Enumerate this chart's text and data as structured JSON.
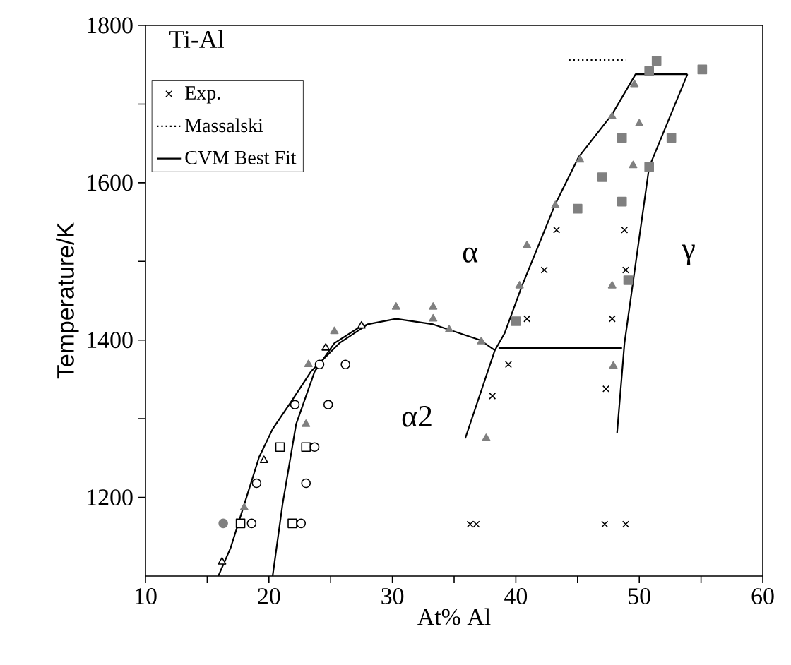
{
  "chart_data": {
    "type": "scatter",
    "title": "Ti-Al",
    "xlabel": "At% Al",
    "ylabel": "Temperature/K",
    "xlim": [
      10,
      60
    ],
    "ylim": [
      1100,
      1800
    ],
    "xticks": [
      10,
      {
        "value": 15,
        "label": null
      },
      20,
      {
        "value": 25,
        "label": null
      },
      30,
      {
        "value": 35,
        "label": null
      },
      40,
      {
        "value": 45,
        "label": null
      },
      50,
      {
        "value": 55,
        "label": null
      },
      60
    ],
    "yticks": [
      {
        "value": 1300,
        "label": null
      },
      1200,
      1400,
      {
        "value": 1500,
        "label": null
      },
      1600,
      {
        "value": 1700,
        "label": null
      },
      1800
    ],
    "legend": "top left",
    "grid": false,
    "annotations": [
      "α",
      "α2",
      "γ"
    ],
    "series": [
      {
        "name": "Exp.",
        "marker": "cross",
        "color": "#000000",
        "x": [
          43.3,
          48.8,
          42.3,
          48.9,
          40.9,
          47.8,
          38.1,
          47.3,
          36.3,
          47.2,
          39.4,
          48.9,
          36.8
        ],
        "values": [
          1540,
          1540,
          1489,
          1489,
          1427,
          1427,
          1329,
          1338,
          1166,
          1166,
          1369,
          1166,
          1166
        ]
      },
      {
        "marker": "triangle",
        "color": "#808080",
        "x": [
          49.6,
          47.8,
          50.0,
          45.2,
          49.5,
          43.2,
          40.9,
          40.3,
          47.8,
          47.9,
          37.2,
          30.3,
          33.3,
          33.3,
          34.6,
          25.3,
          23.2,
          23.0,
          18.0,
          37.6
        ],
        "values": [
          1725,
          1684,
          1675,
          1629,
          1622,
          1571,
          1520,
          1469,
          1469,
          1367,
          1398,
          1442,
          1442,
          1427,
          1413,
          1411,
          1369,
          1293,
          1187,
          1275
        ]
      },
      {
        "marker": "triangle",
        "color": "#000000",
        "x": [
          16.2,
          19.6,
          24.6,
          27.5
        ],
        "values": [
          1118,
          1247,
          1390,
          1418
        ]
      },
      {
        "marker": "square",
        "color": "#808080",
        "x": [
          50.8,
          51.4,
          55.1,
          48.6,
          52.6,
          47.0,
          50.8,
          45.0,
          48.6,
          49.1,
          40.0
        ],
        "values": [
          1742,
          1755,
          1744,
          1657,
          1657,
          1607,
          1620,
          1567,
          1576,
          1476,
          1424
        ]
      },
      {
        "marker": "square",
        "color": "#000000",
        "x": [
          20.9,
          17.7,
          21.9,
          23.0
        ],
        "values": [
          1264,
          1167,
          1167,
          1264
        ]
      },
      {
        "marker": "circle",
        "color": "#000000",
        "x": [
          22.1,
          24.8,
          26.2,
          24.1,
          19.0,
          23.0,
          18.6,
          22.6,
          23.7
        ],
        "values": [
          1318,
          1318,
          1369,
          1369,
          1218,
          1218,
          1167,
          1167,
          1264
        ]
      },
      {
        "marker": "circle",
        "color": "#808080",
        "x": [
          16.3
        ],
        "values": [
          1167
        ]
      },
      {
        "name": "Massalski",
        "type": "line",
        "marker": "none",
        "line_style": "dotted",
        "color": "#000000",
        "x": [
          44.3,
          48.9
        ],
        "values": [
          1756,
          1756
        ]
      },
      {
        "name": "CVM Best Fit",
        "type": "line",
        "marker": "none",
        "line_style": "solid",
        "color": "#000000",
        "x": [
          15.9,
          16.9,
          18.0,
          19.2,
          20.3,
          21.9,
          23.4,
          25.7,
          28.0,
          30.3,
          33.3,
          37.1,
          38.3
        ],
        "values": [
          1100,
          1136,
          1191,
          1251,
          1287,
          1324,
          1360,
          1396,
          1420,
          1427,
          1420,
          1400,
          1387
        ]
      },
      {
        "type": "line",
        "marker": "none",
        "line_style": "solid",
        "color": "#000000",
        "x": [
          20.3,
          21.1,
          22.2,
          23.7,
          25.3,
          27.2,
          28.0
        ],
        "values": [
          1100,
          1191,
          1293,
          1360,
          1396,
          1415,
          1420
        ]
      },
      {
        "type": "line",
        "marker": "none",
        "line_style": "solid",
        "color": "#000000",
        "x": [
          35.9,
          38.3,
          39.1,
          40.5,
          43.2,
          45.1,
          47.8,
          49.7,
          53.9
        ],
        "values": [
          1275,
          1387,
          1409,
          1469,
          1573,
          1633,
          1687,
          1738,
          1738
        ]
      },
      {
        "type": "line",
        "marker": "none",
        "line_style": "solid",
        "color": "#000000",
        "x": [
          38.6,
          48.6
        ],
        "values": [
          1390,
          1390
        ]
      },
      {
        "type": "line",
        "marker": "none",
        "line_style": "solid",
        "color": "#000000",
        "x": [
          53.9,
          50.8,
          48.8,
          48.2
        ],
        "values": [
          1738,
          1620,
          1396,
          1282
        ]
      }
    ]
  }
}
